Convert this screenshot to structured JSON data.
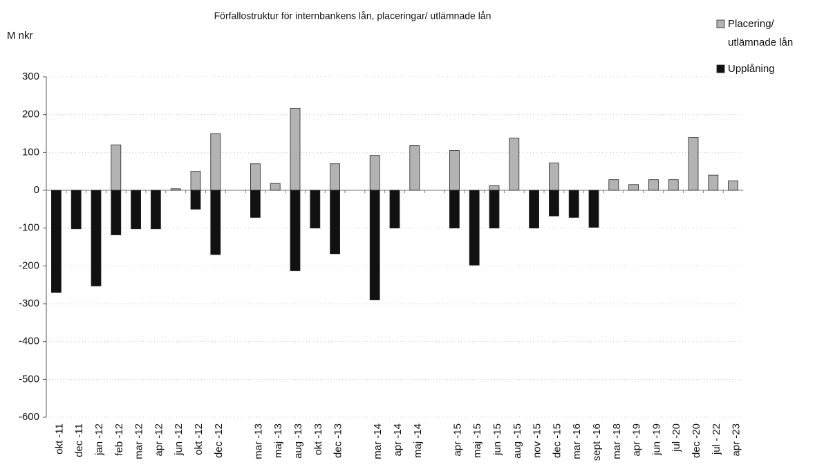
{
  "chart_data": {
    "type": "bar",
    "title": "Förfallostruktur för internbankens lån, placeringar/ utlämnade lån",
    "y_label": "M nkr",
    "categories": [
      "okt -11",
      "dec -11",
      "jan -12",
      "feb -12",
      "mar -12",
      "apr -12",
      "jun -12",
      "okt -12",
      "dec -12",
      null,
      "mar -13",
      "maj -13",
      "aug -13",
      "okt -13",
      "dec -13",
      null,
      "mar -14",
      "apr -14",
      "maj -14",
      null,
      "apr -15",
      "maj -15",
      "jun -15",
      "aug -15",
      "nov -15",
      "dec -15",
      "mar -16",
      "sept -16",
      "mar -18",
      "apr -19",
      "jun -19",
      "jul -20",
      "dec -20",
      "jul - 22",
      "apr -23"
    ],
    "series": [
      {
        "name": "Placering/ utlämnade lån",
        "color": "#b3b3b3",
        "values": [
          null,
          null,
          null,
          120,
          null,
          null,
          4,
          50,
          150,
          null,
          70,
          18,
          217,
          null,
          70,
          null,
          92,
          null,
          118,
          null,
          105,
          null,
          12,
          138,
          null,
          72,
          null,
          null,
          28,
          15,
          28,
          28,
          140,
          40,
          25
        ]
      },
      {
        "name": "Upplåning",
        "color": "#111111",
        "values": [
          -270,
          -102,
          -253,
          -118,
          -102,
          -102,
          null,
          -50,
          -170,
          null,
          -72,
          null,
          -213,
          -100,
          -168,
          null,
          -290,
          -100,
          null,
          null,
          -100,
          -198,
          -100,
          null,
          -100,
          -68,
          -72,
          -98,
          null,
          null,
          null,
          null,
          null,
          null,
          null
        ]
      }
    ],
    "ylim": [
      -600,
      300
    ],
    "yticks": [
      -600,
      -500,
      -400,
      -300,
      -200,
      -100,
      0,
      100,
      200,
      300
    ],
    "grid": true,
    "legend": "top-right"
  }
}
